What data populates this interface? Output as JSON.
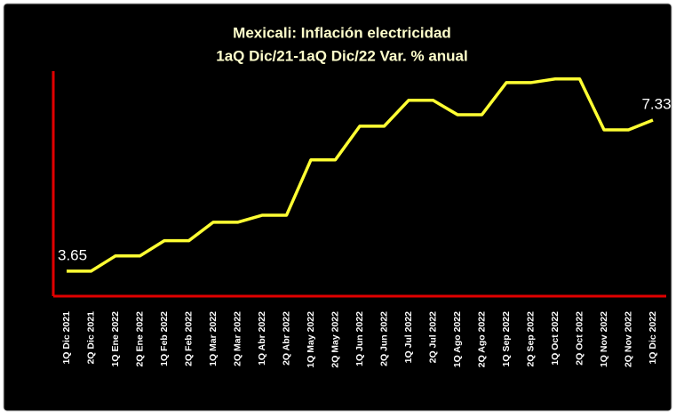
{
  "chart_data": {
    "type": "line",
    "title": "Mexicali: Inflación electricidad",
    "subtitle": "1aQ Dic/21-1aQ Dic/22 Var. % anual",
    "categories": [
      "1Q Dic 2021",
      "2Q Dic 2021",
      "1Q Ene 2022",
      "2Q Ene 2022",
      "1Q Feb 2022",
      "2Q Feb 2022",
      "1Q Mar 2022",
      "2Q Mar 2022",
      "1Q Abr 2022",
      "2Q Abr 2022",
      "1Q May 2022",
      "2Q May 2022",
      "1Q Jun 2022",
      "2Q Jun 2022",
      "1Q Jul 2022",
      "2Q Jul 2022",
      "1Q Ago 2022",
      "2Q Ago 2022",
      "1Q Sep 2022",
      "2Q Sep 2022",
      "1Q Oct 2022",
      "2Q Oct 2022",
      "1Q Nov 2022",
      "2Q Nov 2022",
      "1Q Dic 2022"
    ],
    "series": [
      {
        "name": "Electricidad",
        "color": "#ffff33",
        "values": [
          3.65,
          3.65,
          4.02,
          4.02,
          4.39,
          4.39,
          4.84,
          4.84,
          5.01,
          5.01,
          6.36,
          6.36,
          7.18,
          7.18,
          7.81,
          7.81,
          7.46,
          7.46,
          8.24,
          8.24,
          8.33,
          8.33,
          7.09,
          7.09,
          7.33
        ]
      }
    ],
    "ylim": [
      3.04,
      8.52
    ],
    "axis_color": "#e00000"
  }
}
